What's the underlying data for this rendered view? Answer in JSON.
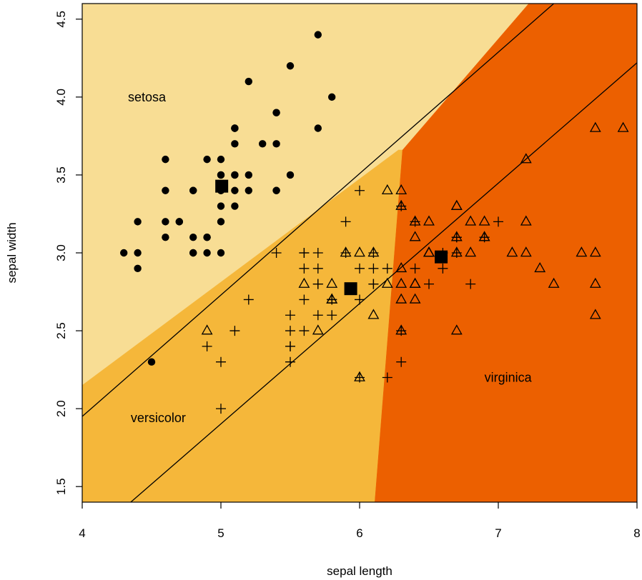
{
  "chart_data": {
    "type": "scatter",
    "title": "",
    "xlabel": "sepal length",
    "ylabel": "sepal width",
    "xlim": [
      4,
      8
    ],
    "ylim": [
      1.4,
      4.6
    ],
    "x_ticks": [
      {
        "value": 4,
        "label": "4"
      },
      {
        "value": 5,
        "label": "5"
      },
      {
        "value": 6,
        "label": "6"
      },
      {
        "value": 7,
        "label": "7"
      },
      {
        "value": 8,
        "label": "8"
      }
    ],
    "y_ticks": [
      {
        "value": 1.5,
        "label": "1.5"
      },
      {
        "value": 2.0,
        "label": "2.0"
      },
      {
        "value": 2.5,
        "label": "2.5"
      },
      {
        "value": 3.0,
        "label": "3.0"
      },
      {
        "value": 3.5,
        "label": "3.5"
      },
      {
        "value": 4.0,
        "label": "4.0"
      },
      {
        "value": 4.5,
        "label": "4.5"
      }
    ],
    "regions": [
      {
        "name": "setosa",
        "color": "#f8dd94",
        "label_at": [
          4.33,
          4.0
        ],
        "polygon": [
          [
            4,
            4.6
          ],
          [
            8,
            4.6
          ],
          [
            7.22,
            4.6
          ],
          [
            6.31,
            3.66
          ],
          [
            6.28,
            3.66
          ],
          [
            4,
            2.15
          ]
        ]
      },
      {
        "name": "versicolor",
        "color": "#f5b73a",
        "label_at": [
          4.35,
          1.94
        ],
        "polygon": [
          [
            4,
            2.15
          ],
          [
            6.28,
            3.66
          ],
          [
            6.31,
            3.66
          ],
          [
            6.11,
            1.4
          ],
          [
            4,
            1.4
          ]
        ]
      },
      {
        "name": "virginica",
        "color": "#ec6000",
        "label_at": [
          6.9,
          2.2
        ],
        "polygon": [
          [
            6.31,
            3.66
          ],
          [
            7.22,
            4.6
          ],
          [
            8,
            4.6
          ],
          [
            8,
            1.4
          ],
          [
            6.11,
            1.4
          ]
        ]
      }
    ],
    "boundary_lines": [
      {
        "points": [
          [
            4,
            1.95
          ],
          [
            7.4,
            4.6
          ]
        ]
      },
      {
        "points": [
          [
            4.35,
            1.4
          ],
          [
            8,
            4.22
          ]
        ]
      }
    ],
    "centroids": [
      {
        "class": "setosa",
        "x": 5.006,
        "y": 3.428
      },
      {
        "class": "versicolor",
        "x": 5.936,
        "y": 2.77
      },
      {
        "class": "virginica",
        "x": 6.588,
        "y": 2.974
      }
    ],
    "series": [
      {
        "name": "setosa",
        "marker": "filled-circle",
        "points": [
          [
            5.1,
            3.5
          ],
          [
            4.9,
            3.0
          ],
          [
            4.7,
            3.2
          ],
          [
            4.6,
            3.1
          ],
          [
            5.0,
            3.6
          ],
          [
            5.4,
            3.9
          ],
          [
            4.6,
            3.4
          ],
          [
            5.0,
            3.4
          ],
          [
            4.4,
            2.9
          ],
          [
            4.9,
            3.1
          ],
          [
            5.4,
            3.7
          ],
          [
            4.8,
            3.4
          ],
          [
            4.8,
            3.0
          ],
          [
            4.3,
            3.0
          ],
          [
            5.8,
            4.0
          ],
          [
            5.7,
            4.4
          ],
          [
            5.4,
            3.9
          ],
          [
            5.1,
            3.5
          ],
          [
            5.7,
            3.8
          ],
          [
            5.1,
            3.8
          ],
          [
            5.4,
            3.4
          ],
          [
            5.1,
            3.7
          ],
          [
            4.6,
            3.6
          ],
          [
            5.1,
            3.3
          ],
          [
            4.8,
            3.4
          ],
          [
            5.0,
            3.0
          ],
          [
            5.0,
            3.4
          ],
          [
            5.2,
            3.5
          ],
          [
            5.2,
            3.4
          ],
          [
            4.7,
            3.2
          ],
          [
            4.8,
            3.1
          ],
          [
            5.4,
            3.4
          ],
          [
            5.2,
            4.1
          ],
          [
            5.5,
            4.2
          ],
          [
            4.9,
            3.1
          ],
          [
            5.0,
            3.2
          ],
          [
            5.5,
            3.5
          ],
          [
            4.9,
            3.6
          ],
          [
            4.4,
            3.0
          ],
          [
            5.1,
            3.4
          ],
          [
            5.0,
            3.5
          ],
          [
            4.5,
            2.3
          ],
          [
            4.4,
            3.2
          ],
          [
            5.0,
            3.5
          ],
          [
            5.1,
            3.8
          ],
          [
            4.8,
            3.0
          ],
          [
            5.1,
            3.8
          ],
          [
            4.6,
            3.2
          ],
          [
            5.3,
            3.7
          ],
          [
            5.0,
            3.3
          ]
        ]
      },
      {
        "name": "versicolor",
        "marker": "plus",
        "points": [
          [
            7.0,
            3.2
          ],
          [
            6.4,
            3.2
          ],
          [
            6.9,
            3.1
          ],
          [
            5.5,
            2.3
          ],
          [
            6.5,
            2.8
          ],
          [
            5.7,
            2.8
          ],
          [
            6.3,
            3.3
          ],
          [
            4.9,
            2.4
          ],
          [
            6.6,
            2.9
          ],
          [
            5.2,
            2.7
          ],
          [
            5.0,
            2.0
          ],
          [
            5.9,
            3.0
          ],
          [
            6.0,
            2.2
          ],
          [
            6.1,
            2.9
          ],
          [
            5.6,
            2.9
          ],
          [
            6.7,
            3.1
          ],
          [
            5.6,
            3.0
          ],
          [
            5.8,
            2.7
          ],
          [
            6.2,
            2.2
          ],
          [
            5.6,
            2.5
          ],
          [
            5.9,
            3.2
          ],
          [
            6.1,
            2.8
          ],
          [
            6.3,
            2.5
          ],
          [
            6.1,
            2.8
          ],
          [
            6.4,
            2.9
          ],
          [
            6.6,
            3.0
          ],
          [
            6.8,
            2.8
          ],
          [
            6.7,
            3.0
          ],
          [
            6.0,
            2.9
          ],
          [
            5.7,
            2.6
          ],
          [
            5.5,
            2.4
          ],
          [
            5.5,
            2.4
          ],
          [
            5.8,
            2.7
          ],
          [
            6.0,
            2.7
          ],
          [
            5.4,
            3.0
          ],
          [
            6.0,
            3.4
          ],
          [
            6.7,
            3.1
          ],
          [
            6.3,
            2.3
          ],
          [
            5.6,
            3.0
          ],
          [
            5.5,
            2.5
          ],
          [
            5.5,
            2.6
          ],
          [
            6.1,
            3.0
          ],
          [
            5.8,
            2.6
          ],
          [
            5.0,
            2.3
          ],
          [
            5.6,
            2.7
          ],
          [
            5.7,
            3.0
          ],
          [
            5.7,
            2.9
          ],
          [
            6.2,
            2.9
          ],
          [
            5.1,
            2.5
          ],
          [
            5.7,
            2.8
          ]
        ]
      },
      {
        "name": "virginica",
        "marker": "open-triangle",
        "points": [
          [
            6.3,
            3.3
          ],
          [
            5.8,
            2.7
          ],
          [
            7.1,
            3.0
          ],
          [
            6.3,
            2.9
          ],
          [
            6.5,
            3.0
          ],
          [
            7.6,
            3.0
          ],
          [
            4.9,
            2.5
          ],
          [
            7.3,
            2.9
          ],
          [
            6.7,
            2.5
          ],
          [
            7.2,
            3.6
          ],
          [
            6.5,
            3.2
          ],
          [
            6.4,
            2.7
          ],
          [
            6.8,
            3.0
          ],
          [
            5.7,
            2.5
          ],
          [
            5.8,
            2.8
          ],
          [
            6.4,
            3.2
          ],
          [
            6.5,
            3.0
          ],
          [
            7.7,
            3.8
          ],
          [
            7.7,
            2.6
          ],
          [
            6.0,
            2.2
          ],
          [
            6.9,
            3.2
          ],
          [
            5.6,
            2.8
          ],
          [
            7.7,
            2.8
          ],
          [
            6.3,
            2.7
          ],
          [
            6.7,
            3.3
          ],
          [
            7.2,
            3.2
          ],
          [
            6.2,
            2.8
          ],
          [
            6.1,
            3.0
          ],
          [
            6.4,
            2.8
          ],
          [
            7.2,
            3.0
          ],
          [
            7.4,
            2.8
          ],
          [
            7.9,
            3.8
          ],
          [
            6.4,
            2.8
          ],
          [
            6.3,
            2.8
          ],
          [
            6.1,
            2.6
          ],
          [
            7.7,
            3.0
          ],
          [
            6.3,
            3.4
          ],
          [
            6.4,
            3.1
          ],
          [
            6.0,
            3.0
          ],
          [
            6.9,
            3.1
          ],
          [
            6.7,
            3.1
          ],
          [
            6.9,
            3.1
          ],
          [
            5.8,
            2.7
          ],
          [
            6.8,
            3.2
          ],
          [
            6.7,
            3.3
          ],
          [
            6.7,
            3.0
          ],
          [
            6.3,
            2.5
          ],
          [
            6.5,
            3.0
          ],
          [
            6.2,
            3.4
          ],
          [
            5.9,
            3.0
          ]
        ]
      }
    ],
    "grid": false,
    "legend": "none"
  }
}
